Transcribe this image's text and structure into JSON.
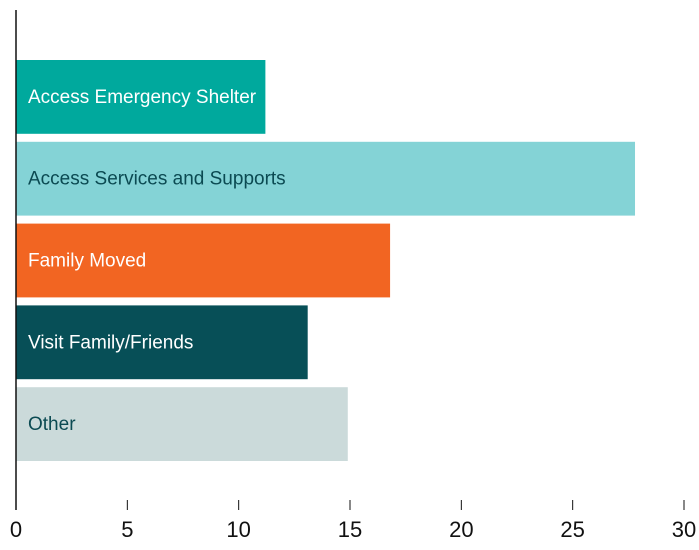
{
  "chart_data": {
    "type": "barh",
    "categories": [
      "Access Emergency Shelter",
      "Access Services and Supports",
      "Family Moved",
      "Visit Family/Friends",
      "Other"
    ],
    "values": [
      11.2,
      27.8,
      16.8,
      13.1,
      14.9
    ],
    "colors": [
      "#00a99d",
      "#84d3d6",
      "#f26522",
      "#074f57",
      "#cbdada"
    ],
    "label_colors": [
      "#ffffff",
      "#0b4a52",
      "#ffffff",
      "#ffffff",
      "#0b4a52"
    ],
    "xlim": [
      0,
      30
    ],
    "xticks": [
      0,
      5,
      10,
      15,
      20,
      25,
      30
    ]
  }
}
